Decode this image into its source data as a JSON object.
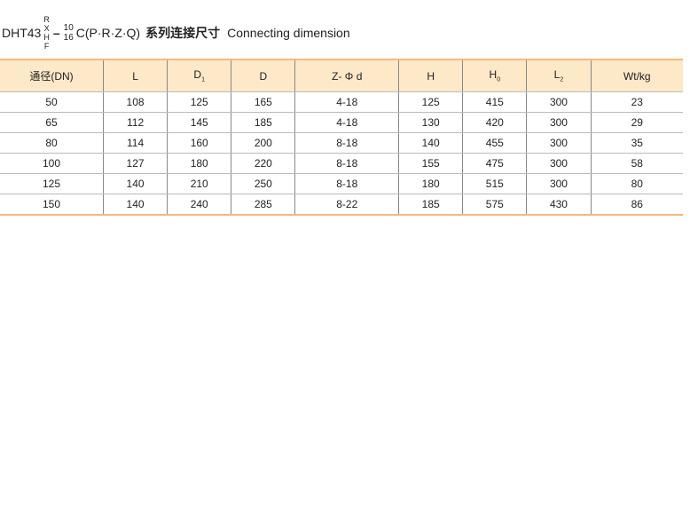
{
  "title": {
    "model": "DHT43",
    "variants": [
      "R",
      "X",
      "H",
      "F"
    ],
    "pressures": [
      "10",
      "16"
    ],
    "suffix": "C(P·R·Z·Q)",
    "cn": "系列连接尺寸",
    "en": "Connecting dimension"
  },
  "table": {
    "headers": [
      {
        "t": "通径(DN)",
        "s": ""
      },
      {
        "t": "L",
        "s": ""
      },
      {
        "t": "D",
        "s": "1"
      },
      {
        "t": "D",
        "s": ""
      },
      {
        "t": "Z- Φ d",
        "s": ""
      },
      {
        "t": "H",
        "s": ""
      },
      {
        "t": "H",
        "s": "0"
      },
      {
        "t": "L",
        "s": "2"
      },
      {
        "t": "Wt/kg",
        "s": ""
      }
    ],
    "rows": [
      [
        "50",
        "108",
        "125",
        "165",
        "4-18",
        "125",
        "415",
        "300",
        "23"
      ],
      [
        "65",
        "112",
        "145",
        "185",
        "4-18",
        "130",
        "420",
        "300",
        "29"
      ],
      [
        "80",
        "114",
        "160",
        "200",
        "8-18",
        "140",
        "455",
        "300",
        "35"
      ],
      [
        "100",
        "127",
        "180",
        "220",
        "8-18",
        "155",
        "475",
        "300",
        "58"
      ],
      [
        "125",
        "140",
        "210",
        "250",
        "8-18",
        "180",
        "515",
        "300",
        "80"
      ],
      [
        "150",
        "140",
        "240",
        "285",
        "8-22",
        "185",
        "575",
        "430",
        "86"
      ]
    ]
  },
  "colors": {
    "header_bg": "#fde8c8",
    "accent_border": "#f5b97a"
  }
}
